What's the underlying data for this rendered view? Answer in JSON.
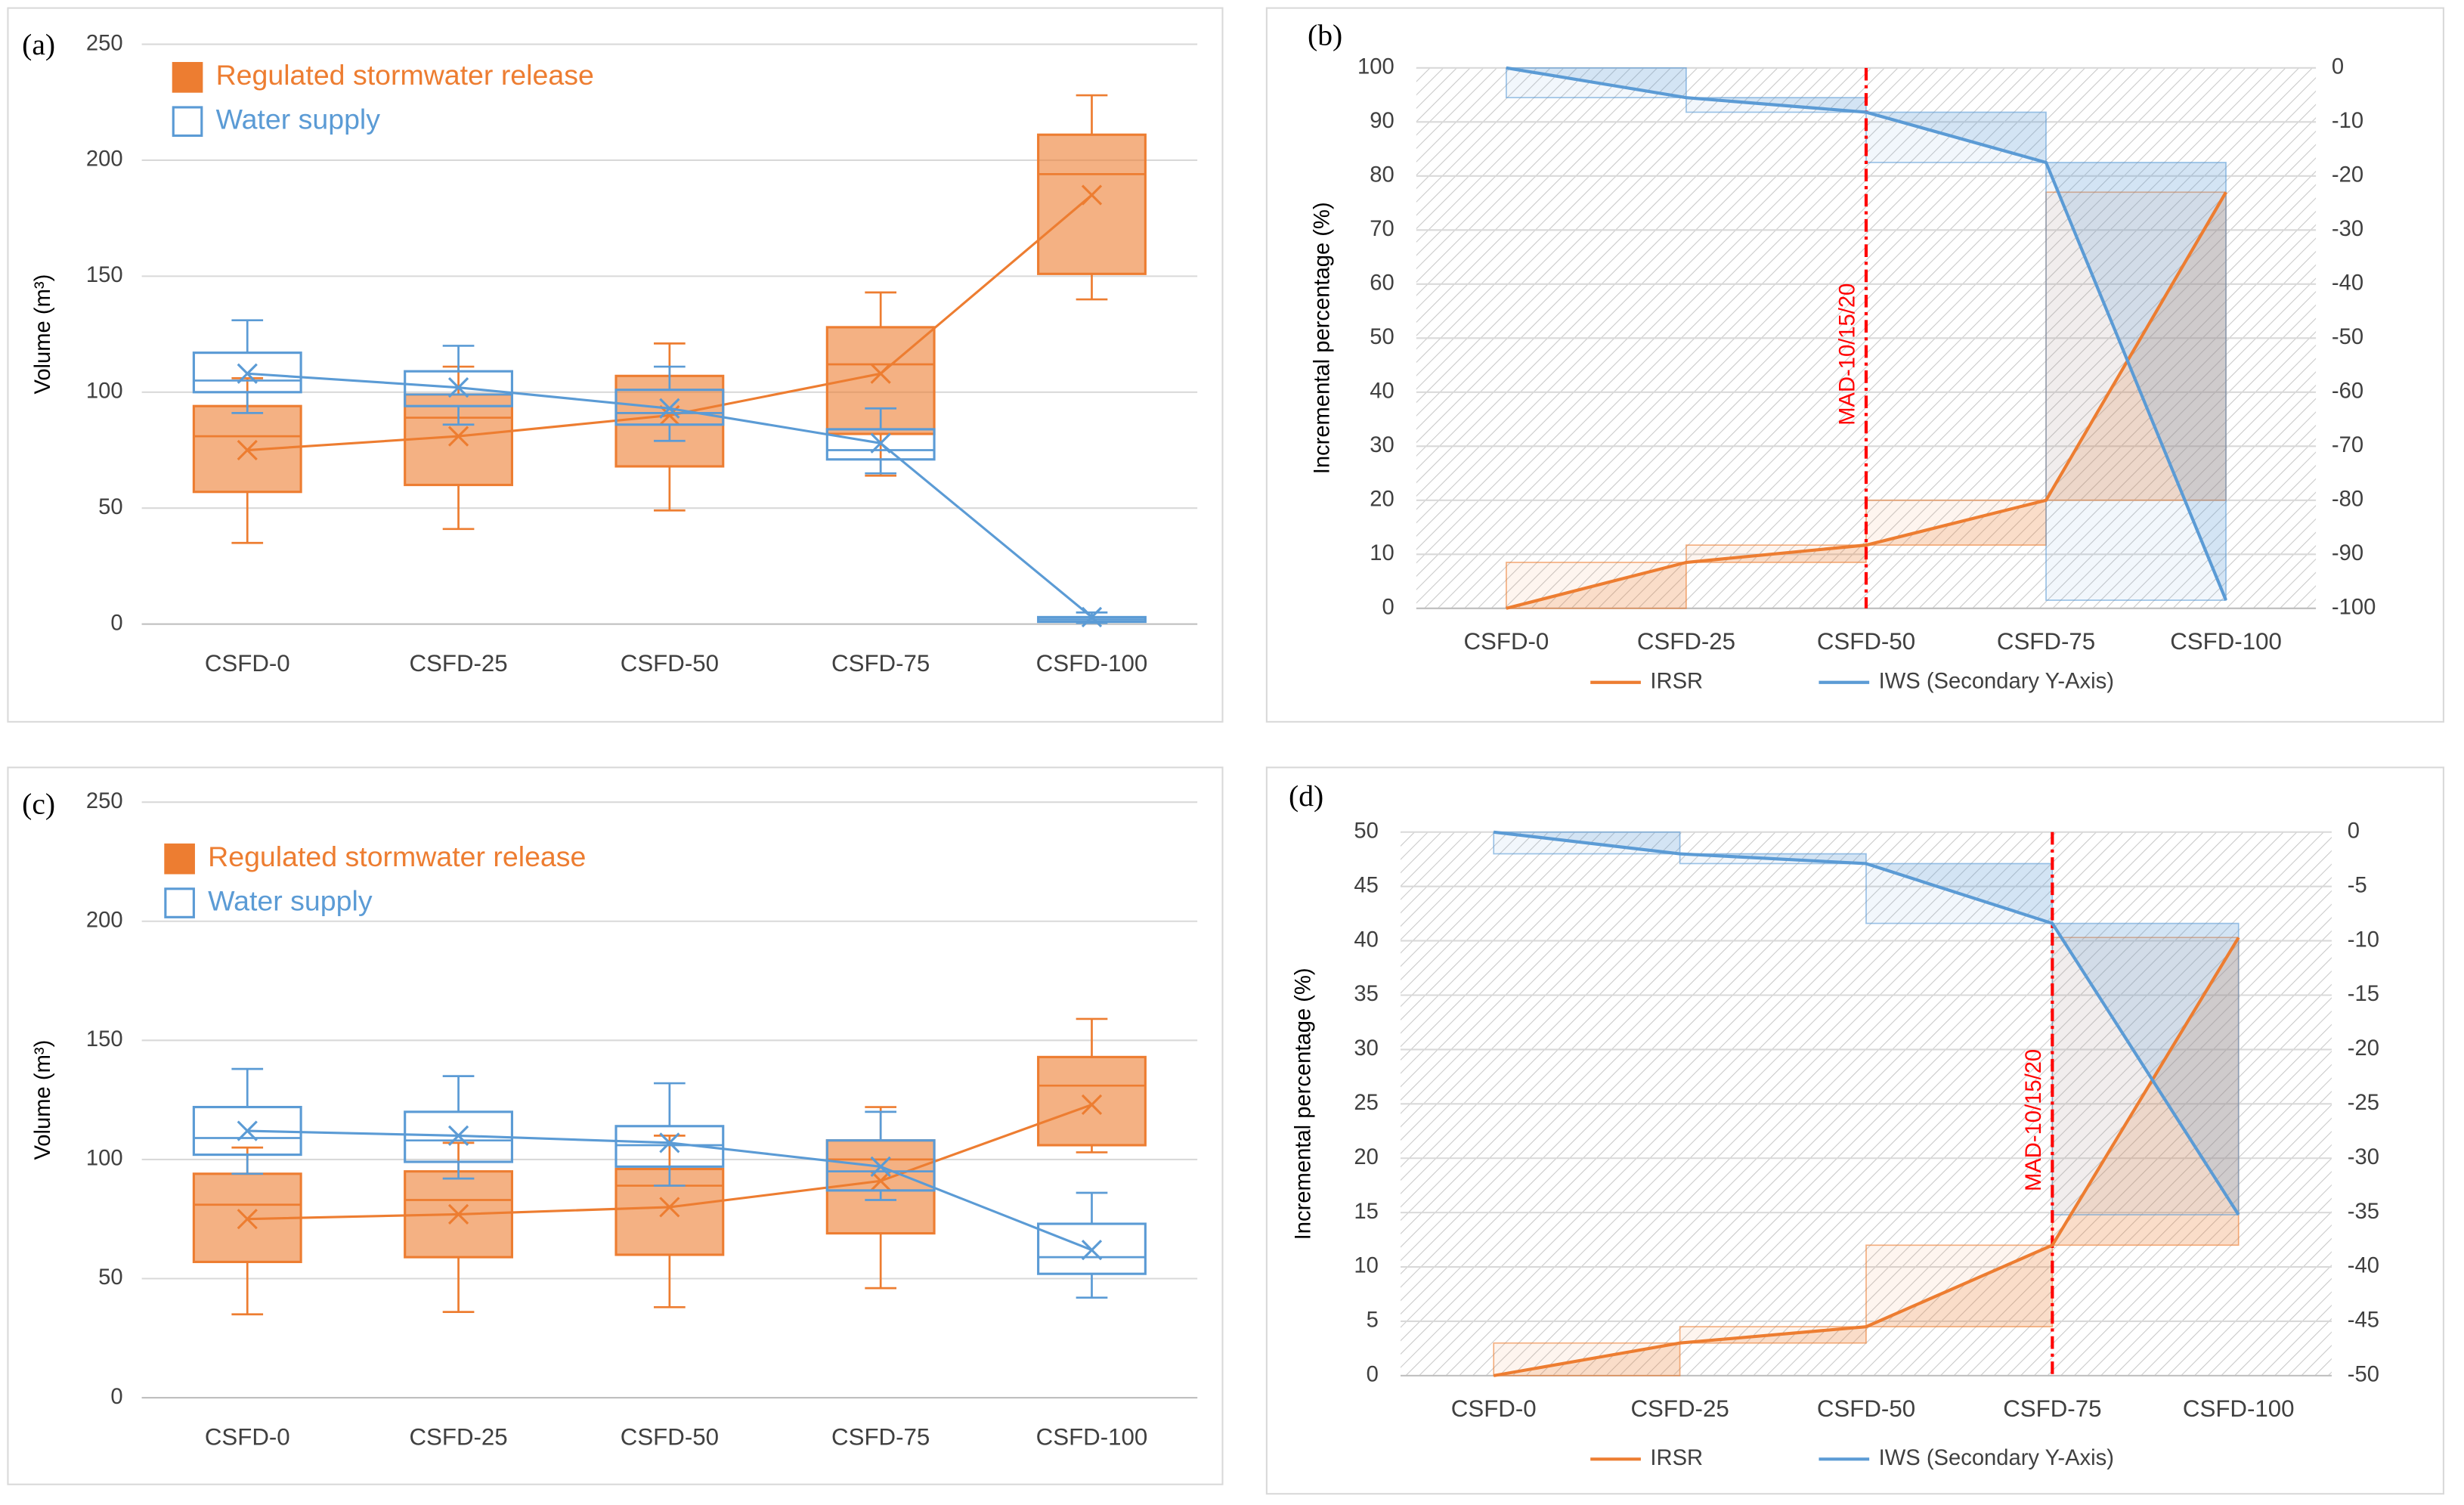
{
  "chart_data": [
    {
      "type": "box",
      "label": "(a)",
      "ylabel": "Volume (m³)",
      "categories": [
        "CSFD-0",
        "CSFD-25",
        "CSFD-50",
        "CSFD-75",
        "CSFD-100"
      ],
      "ylim": [
        0,
        250
      ],
      "yticks": [
        0,
        50,
        100,
        150,
        200,
        250
      ],
      "grid": true,
      "series": [
        {
          "name": "Regulated stormwater release",
          "color": "#ed7d31",
          "filled": true,
          "min": [
            35,
            41,
            49,
            64,
            140
          ],
          "q1": [
            57,
            60,
            68,
            82,
            151
          ],
          "median": [
            81,
            89,
            91,
            112,
            194
          ],
          "q3": [
            94,
            99,
            107,
            128,
            211
          ],
          "max": [
            106,
            111,
            121,
            143,
            228
          ],
          "mean": [
            75,
            81,
            90,
            108,
            185
          ]
        },
        {
          "name": "Water supply",
          "color": "#5b9bd5",
          "filled": false,
          "min": [
            91,
            86,
            79,
            65,
            0.5
          ],
          "q1": [
            100,
            94,
            86,
            71,
            1
          ],
          "median": [
            105,
            99,
            91,
            75,
            2
          ],
          "q3": [
            117,
            109,
            101,
            84,
            3
          ],
          "max": [
            131,
            120,
            111,
            93,
            5
          ],
          "mean": [
            108,
            102,
            93,
            78,
            3
          ]
        }
      ]
    },
    {
      "type": "line",
      "label": "(b)",
      "ylabel": "Incremental percentage (%)",
      "categories": [
        "CSFD-0",
        "CSFD-25",
        "CSFD-50",
        "CSFD-75",
        "CSFD-100"
      ],
      "ylim": [
        0,
        100
      ],
      "yticks": [
        0,
        10,
        20,
        30,
        40,
        50,
        60,
        70,
        80,
        90,
        100
      ],
      "y2lim": [
        -100,
        0
      ],
      "y2ticks": [
        -100,
        -90,
        -80,
        -70,
        -60,
        -50,
        -40,
        -30,
        -20,
        -10,
        0
      ],
      "grid": true,
      "annotation": {
        "text": "MAD-10/15/20",
        "x": "CSFD-50",
        "color": "#ff0000"
      },
      "series": [
        {
          "name": "IRSR",
          "color": "#ed7d31",
          "values": [
            0,
            8.5,
            11.7,
            20,
            77
          ]
        },
        {
          "name": "IWS (Secondary Y-Axis)",
          "color": "#5b9bd5",
          "axis": "y2",
          "values": [
            0,
            -5.5,
            -8.2,
            -17.5,
            -98.5
          ]
        }
      ]
    },
    {
      "type": "box",
      "label": "(c)",
      "ylabel": "Volume (m³)",
      "categories": [
        "CSFD-0",
        "CSFD-25",
        "CSFD-50",
        "CSFD-75",
        "CSFD-100"
      ],
      "ylim": [
        0,
        250
      ],
      "yticks": [
        0,
        50,
        100,
        150,
        200,
        250
      ],
      "grid": true,
      "series": [
        {
          "name": "Regulated stormwater release",
          "color": "#ed7d31",
          "filled": true,
          "min": [
            35,
            36,
            38,
            46,
            103
          ],
          "q1": [
            57,
            59,
            60,
            69,
            106
          ],
          "median": [
            81,
            83,
            89,
            100,
            131
          ],
          "q3": [
            94,
            95,
            96,
            108,
            143
          ],
          "max": [
            105,
            107,
            110,
            122,
            159
          ],
          "mean": [
            75,
            77,
            80,
            91,
            123
          ]
        },
        {
          "name": "Water supply",
          "color": "#5b9bd5",
          "filled": false,
          "min": [
            94,
            92,
            89,
            83,
            42
          ],
          "q1": [
            102,
            99,
            97,
            87,
            52
          ],
          "median": [
            109,
            108,
            106,
            95,
            59
          ],
          "q3": [
            122,
            120,
            114,
            108,
            73
          ],
          "max": [
            138,
            135,
            132,
            120,
            86
          ],
          "mean": [
            112,
            110,
            107,
            97,
            62
          ]
        }
      ]
    },
    {
      "type": "line",
      "label": "(d)",
      "ylabel": "Incremental percentage (%)",
      "categories": [
        "CSFD-0",
        "CSFD-25",
        "CSFD-50",
        "CSFD-75",
        "CSFD-100"
      ],
      "ylim": [
        0,
        50
      ],
      "yticks": [
        0,
        5,
        10,
        15,
        20,
        25,
        30,
        35,
        40,
        45,
        50
      ],
      "y2lim": [
        -50,
        0
      ],
      "y2ticks": [
        -50,
        -45,
        -40,
        -35,
        -30,
        -25,
        -20,
        -15,
        -10,
        -5,
        0
      ],
      "grid": true,
      "annotation": {
        "text": "MAD-10/15/20",
        "x": "CSFD-75",
        "color": "#ff0000"
      },
      "series": [
        {
          "name": "IRSR",
          "color": "#ed7d31",
          "values": [
            0,
            3,
            4.5,
            12,
            40.3
          ]
        },
        {
          "name": "IWS (Secondary Y-Axis)",
          "color": "#5b9bd5",
          "axis": "y2",
          "values": [
            0,
            -2,
            -2.9,
            -8.4,
            -35.2
          ]
        }
      ]
    }
  ]
}
